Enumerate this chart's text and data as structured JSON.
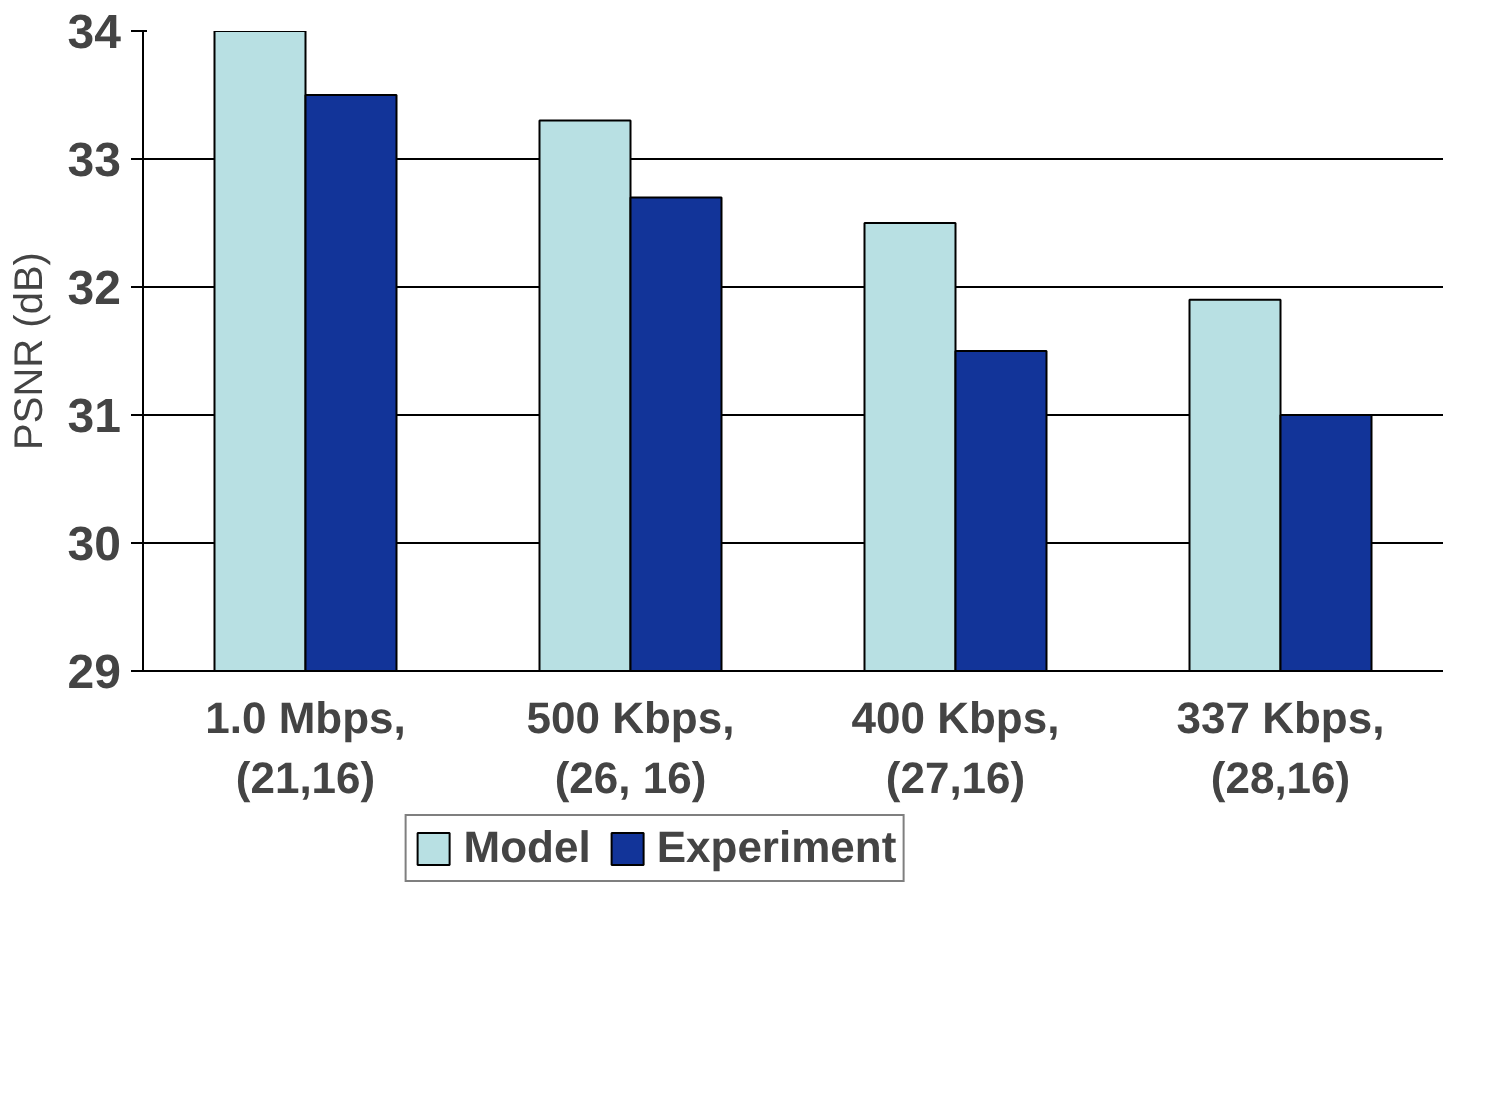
{
  "chart_data": {
    "type": "bar",
    "ylabel": "PSNR (dB)",
    "categories": [
      "1.0 Mbps,\n(21,16)",
      "500 Kbps,\n(26, 16)",
      "400 Kbps,\n(27,16)",
      "337 Kbps,\n(28,16)"
    ],
    "series": [
      {
        "name": "Model",
        "color": "#b8e0e3",
        "values": [
          34.0,
          33.3,
          32.5,
          31.9
        ]
      },
      {
        "name": "Experiment",
        "color": "#123499",
        "values": [
          33.5,
          32.7,
          31.5,
          31.0
        ]
      }
    ],
    "ylim": [
      29,
      34
    ],
    "yticks": [
      29,
      30,
      31,
      32,
      33,
      34
    ],
    "grid": "y",
    "legend": "bottom"
  }
}
